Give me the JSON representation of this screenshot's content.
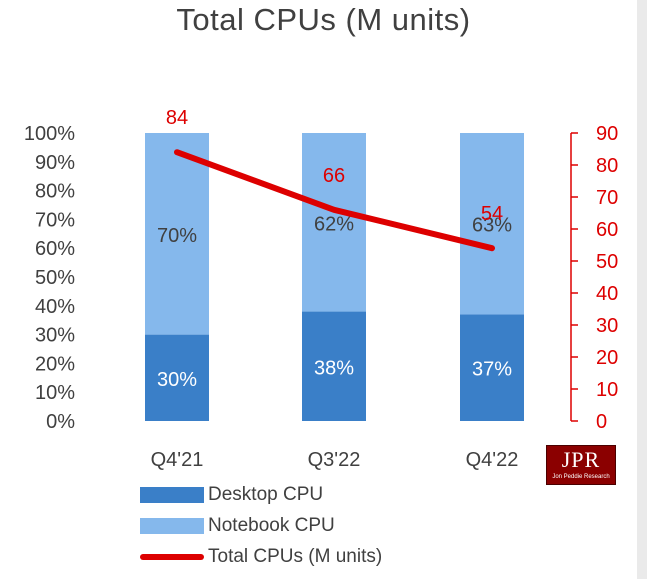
{
  "chart_data": {
    "type": "bar",
    "stacked_percent": true,
    "title": "Total CPUs (M units)",
    "categories": [
      "Q4'21",
      "Q3'22",
      "Q4'22"
    ],
    "series": [
      {
        "name": "Desktop CPU",
        "kind": "bar",
        "values": [
          30,
          38,
          37
        ],
        "labels": [
          "30%",
          "38%",
          "37%"
        ],
        "color": "#3a7fc8"
      },
      {
        "name": "Notebook CPU",
        "kind": "bar",
        "values": [
          70,
          62,
          63
        ],
        "labels": [
          "70%",
          "62%",
          "63%"
        ],
        "color": "#85b8ec"
      },
      {
        "name": "Total CPUs (M units)",
        "kind": "line",
        "axis": "right",
        "values": [
          84,
          66,
          54
        ],
        "labels": [
          "84",
          "66",
          "54"
        ],
        "color": "#dd0000"
      }
    ],
    "y_left": {
      "ticks": [
        "100%",
        "90%",
        "80%",
        "70%",
        "60%",
        "50%",
        "40%",
        "30%",
        "20%",
        "10%",
        "0%"
      ],
      "range": [
        0,
        100
      ]
    },
    "y_right": {
      "ticks": [
        "90",
        "80",
        "70",
        "60",
        "50",
        "40",
        "30",
        "20",
        "10",
        "0"
      ],
      "range": [
        0,
        90
      ]
    },
    "grid": false,
    "legend_position": "bottom"
  },
  "legend": {
    "desktop": "Desktop CPU",
    "notebook": "Notebook CPU",
    "total": "Total CPUs (M units)"
  },
  "logo": {
    "big": "JPR",
    "small": "Jon Peddie Research"
  }
}
